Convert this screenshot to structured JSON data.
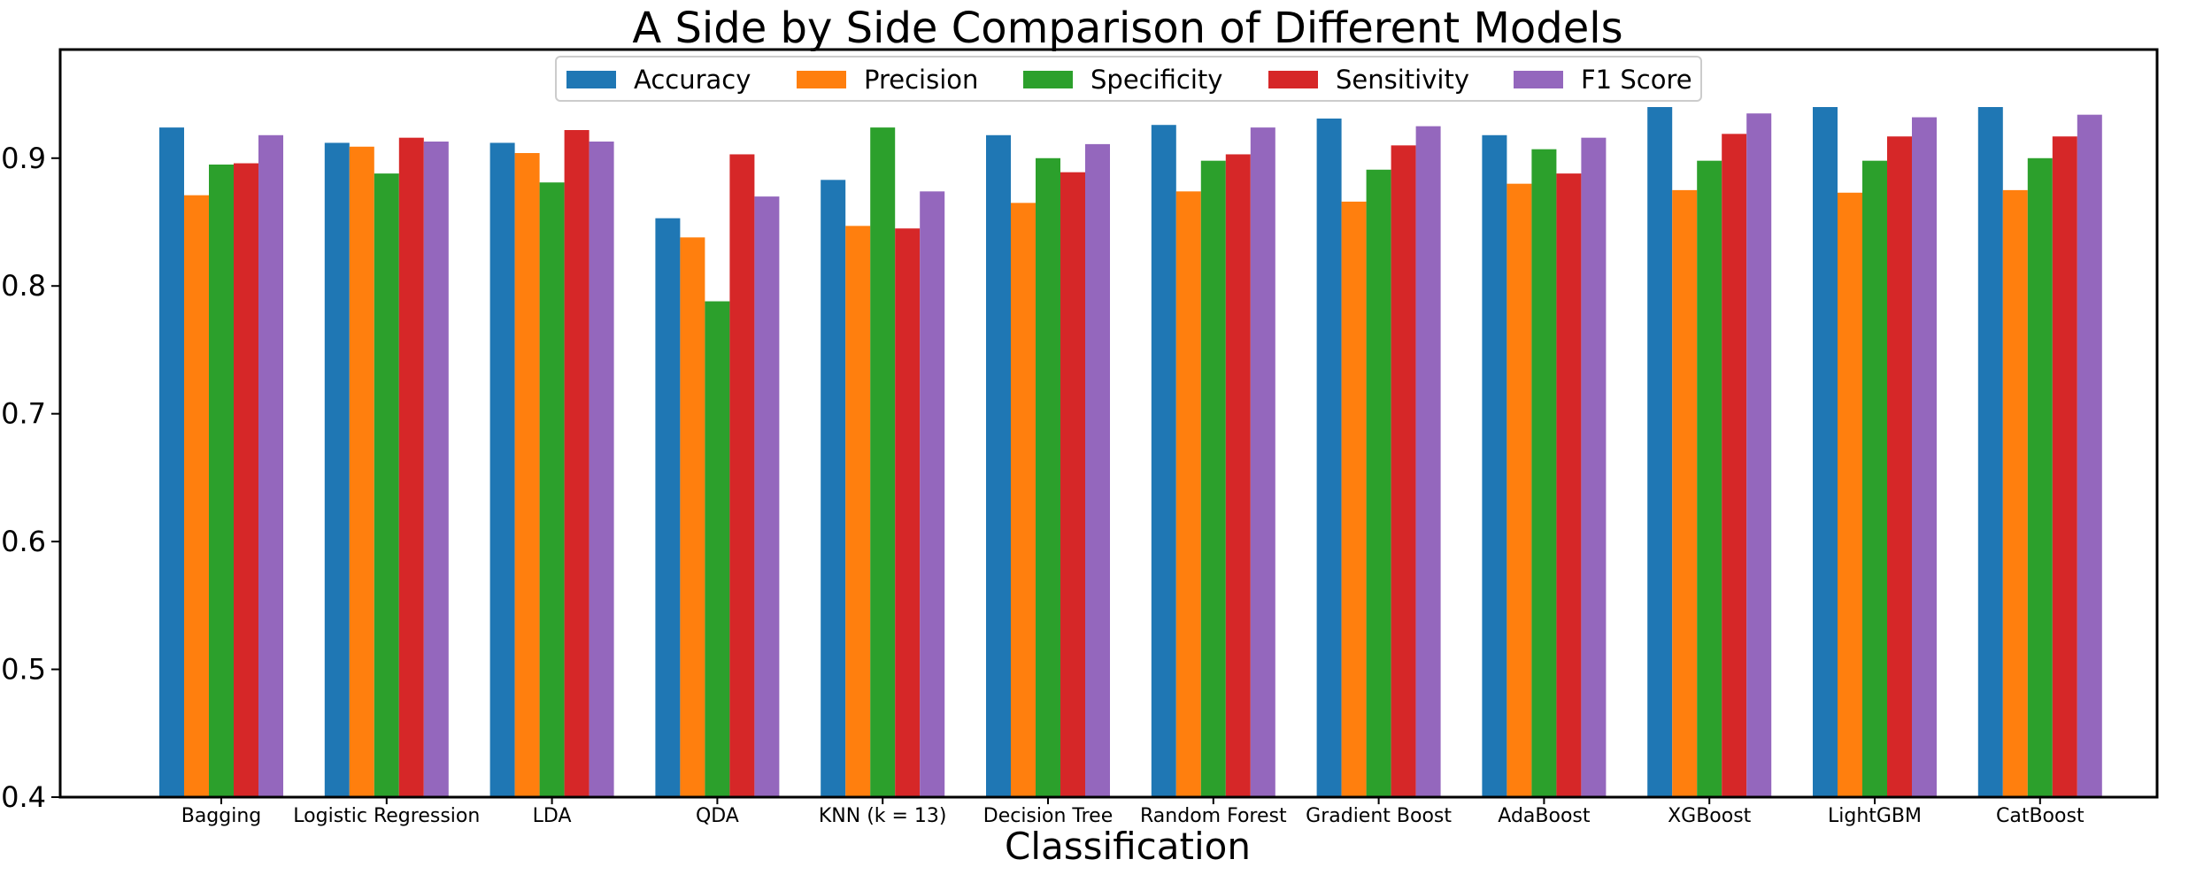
{
  "chart_data": {
    "type": "bar",
    "title": "A Side by Side Comparison of Different Models",
    "xlabel": "Classification",
    "ylabel": "",
    "ylim": [
      0.4,
      0.985
    ],
    "yticks": [
      "0.4",
      "0.5",
      "0.6",
      "0.7",
      "0.8",
      "0.9"
    ],
    "grid": false,
    "legend_position": "top-center",
    "categories": [
      "Bagging",
      "Logistic Regression",
      "LDA",
      "QDA",
      "KNN (k = 13)",
      "Decision Tree",
      "Random Forest",
      "Gradient Boost",
      "AdaBoost",
      "XGBoost",
      "LightGBM",
      "CatBoost"
    ],
    "series": [
      {
        "name": "Accuracy",
        "color": "#1f77b4",
        "values": [
          0.924,
          0.912,
          0.912,
          0.853,
          0.883,
          0.918,
          0.926,
          0.931,
          0.918,
          0.94,
          0.94,
          0.94
        ]
      },
      {
        "name": "Precision",
        "color": "#ff7f0e",
        "values": [
          0.871,
          0.909,
          0.904,
          0.838,
          0.847,
          0.865,
          0.874,
          0.866,
          0.88,
          0.875,
          0.873,
          0.875
        ]
      },
      {
        "name": "Specificity",
        "color": "#2ca02c",
        "values": [
          0.895,
          0.888,
          0.881,
          0.788,
          0.924,
          0.9,
          0.898,
          0.891,
          0.907,
          0.898,
          0.898,
          0.9
        ]
      },
      {
        "name": "Sensitivity",
        "color": "#d62728",
        "values": [
          0.896,
          0.916,
          0.922,
          0.903,
          0.845,
          0.889,
          0.903,
          0.91,
          0.888,
          0.919,
          0.917,
          0.917
        ]
      },
      {
        "name": "F1 Score",
        "color": "#9467bd",
        "values": [
          0.918,
          0.913,
          0.913,
          0.87,
          0.874,
          0.911,
          0.924,
          0.925,
          0.916,
          0.935,
          0.932,
          0.934
        ]
      }
    ]
  }
}
